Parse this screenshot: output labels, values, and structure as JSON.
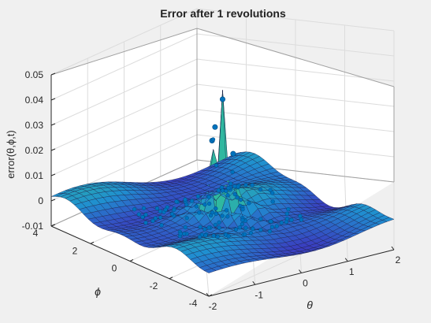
{
  "window": {
    "background": "#f0f0f0"
  },
  "chart_data": {
    "type": "surface-3d",
    "title": "Error after 1 revolutions",
    "zlabel": "error(θ,ϕ,t)",
    "xlabel": "θ",
    "ylabel": "ϕ",
    "xlim": [
      -2,
      2
    ],
    "ylim": [
      -4,
      4
    ],
    "zlim": [
      -0.01,
      0.05
    ],
    "xticks": [
      "-2",
      "-1",
      "0",
      "1",
      "2"
    ],
    "yticks": [
      "-4",
      "-2",
      "0",
      "2",
      "4"
    ],
    "zticks": [
      "-0.01",
      "0",
      "0.01",
      "0.02",
      "0.03",
      "0.04",
      "0.05"
    ],
    "grid": true,
    "surface_colors": {
      "low": "#3b3bbf",
      "mid": "#1f8fd0",
      "high": "#2fb8a0"
    },
    "marker_color": "#0072bd",
    "peaks": [
      {
        "theta": 0.0,
        "phi": 0.0,
        "error": 0.045
      },
      {
        "theta": 0.05,
        "phi": 0.5,
        "error": 0.032
      },
      {
        "theta": -0.1,
        "phi": 0.3,
        "error": 0.028
      },
      {
        "theta": 0.1,
        "phi": -0.3,
        "error": 0.024
      }
    ]
  }
}
